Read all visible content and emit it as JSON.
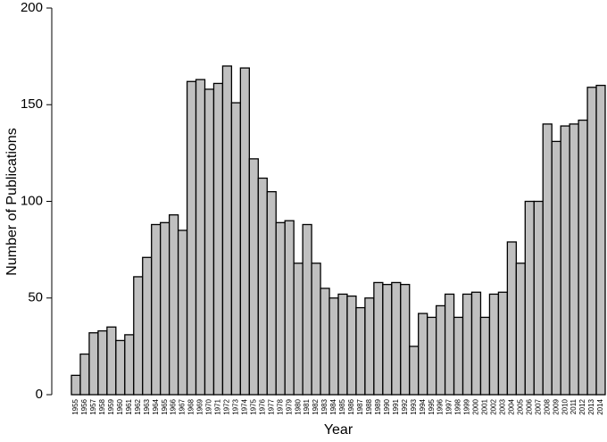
{
  "chart_data": {
    "type": "bar",
    "x_label": "Year",
    "y_label": "Number of Publications",
    "categories": [
      "1955",
      "1956",
      "1957",
      "1958",
      "1959",
      "1960",
      "1961",
      "1962",
      "1963",
      "1964",
      "1965",
      "1966",
      "1967",
      "1968",
      "1969",
      "1970",
      "1971",
      "1972",
      "1973",
      "1974",
      "1975",
      "1976",
      "1977",
      "1978",
      "1979",
      "1980",
      "1981",
      "1982",
      "1983",
      "1984",
      "1985",
      "1986",
      "1987",
      "1988",
      "1989",
      "1990",
      "1991",
      "1992",
      "1993",
      "1994",
      "1995",
      "1996",
      "1997",
      "1998",
      "1999",
      "2000",
      "2001",
      "2002",
      "2003",
      "2004",
      "2005",
      "2006",
      "2007",
      "2008",
      "2009",
      "2010",
      "2011",
      "2012",
      "2013",
      "2014"
    ],
    "values": [
      10,
      21,
      32,
      33,
      35,
      28,
      31,
      61,
      71,
      88,
      89,
      93,
      85,
      162,
      163,
      158,
      161,
      170,
      151,
      169,
      122,
      112,
      105,
      89,
      90,
      68,
      88,
      68,
      55,
      50,
      52,
      51,
      45,
      50,
      58,
      57,
      58,
      57,
      25,
      42,
      40,
      46,
      52,
      40,
      52,
      53,
      40,
      52,
      53,
      79,
      68,
      100,
      100,
      140,
      131,
      139,
      140,
      142,
      159,
      160
    ],
    "color": "#c0c0c0",
    "ylim": [
      0,
      200
    ],
    "yticks": [
      0,
      50,
      100,
      150,
      200
    ],
    "grid": false
  }
}
